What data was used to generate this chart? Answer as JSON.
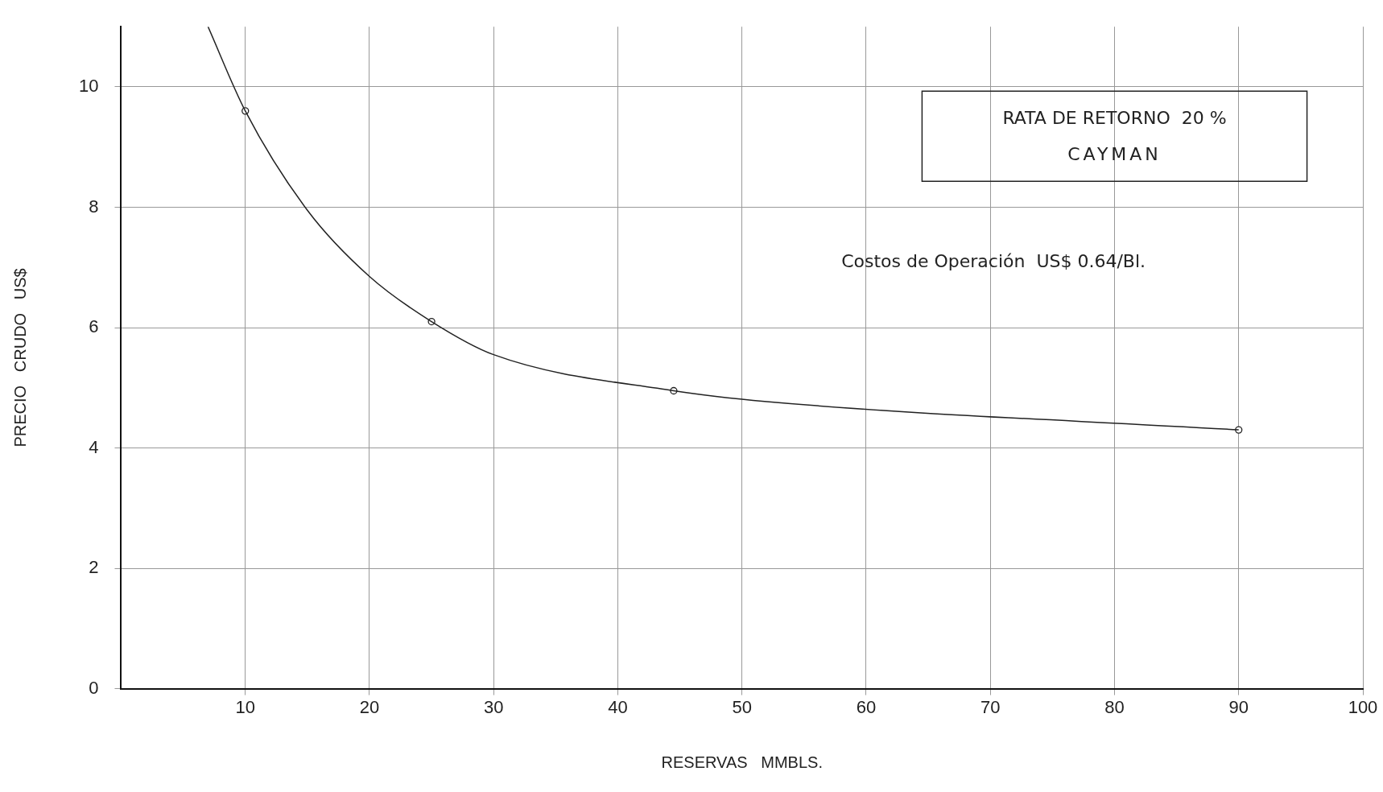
{
  "chart_data": {
    "type": "line",
    "xlabel": "RESERVAS   MMBLS.",
    "ylabel": "PRECIO   CRUDO   US$",
    "annotations": [
      "RATA DE RETORNO  20 %",
      "CAYMAN",
      "Costos de Operación  US$ 0.64/Bl."
    ],
    "series": [
      {
        "type": "line",
        "color": "#222222",
        "marker": "none",
        "x": [
          7,
          10,
          15,
          20,
          25,
          30,
          44.5,
          52,
          90
        ],
        "values": [
          11,
          9.6,
          7.95,
          6.85,
          6.1,
          5.55,
          4.95,
          4.77,
          4.3
        ]
      },
      {
        "type": "scatter",
        "color": "#222222",
        "marker": "circle",
        "x": [
          10,
          25,
          44.5,
          90
        ],
        "values": [
          9.6,
          6.1,
          4.95,
          4.3
        ]
      }
    ],
    "xlim": [
      0,
      100
    ],
    "xticks": [
      10,
      20,
      30,
      40,
      50,
      60,
      70,
      80,
      90,
      100
    ],
    "ylim": [
      0,
      11
    ],
    "yticks": [
      0,
      2,
      4,
      6,
      8,
      10
    ],
    "grid": true,
    "legend": false
  }
}
